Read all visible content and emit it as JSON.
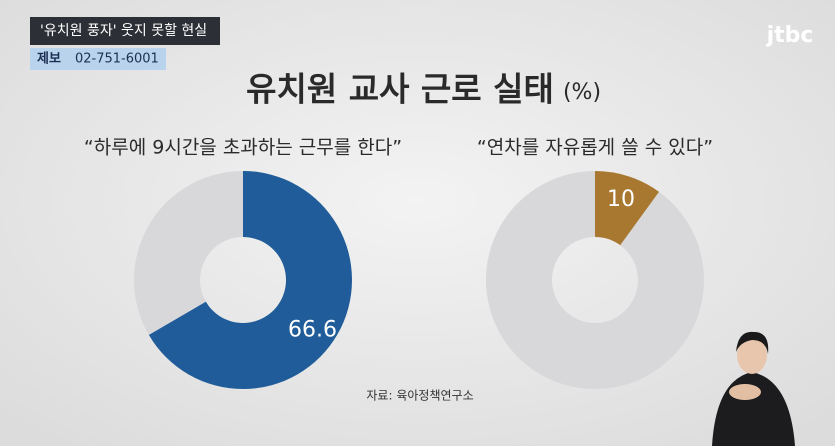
{
  "broadcast": {
    "headline": "'유치원 풍자' 웃지 못할 현실",
    "tip_label": "제보",
    "tip_phone": "02-751-6001",
    "logo": "jtbc"
  },
  "header": {
    "title": "유치원 교사 근로 실태",
    "unit": "(%)"
  },
  "source": "자료: 육아정책연구소",
  "chart_data": [
    {
      "type": "pie",
      "title": "“하루에 9시간을 초과하는 근무를 한다”",
      "categories": [
        null,
        null
      ],
      "values": [
        66.6,
        33.4
      ],
      "colors": [
        "#1f5c99",
        "#d8d8db"
      ]
    },
    {
      "type": "pie",
      "title": "“연차를 자유롭게 쓸 수 있다”",
      "categories": [
        null,
        null
      ],
      "values": [
        10,
        90
      ],
      "colors": [
        "#a87830",
        "#d8d8db"
      ]
    }
  ]
}
